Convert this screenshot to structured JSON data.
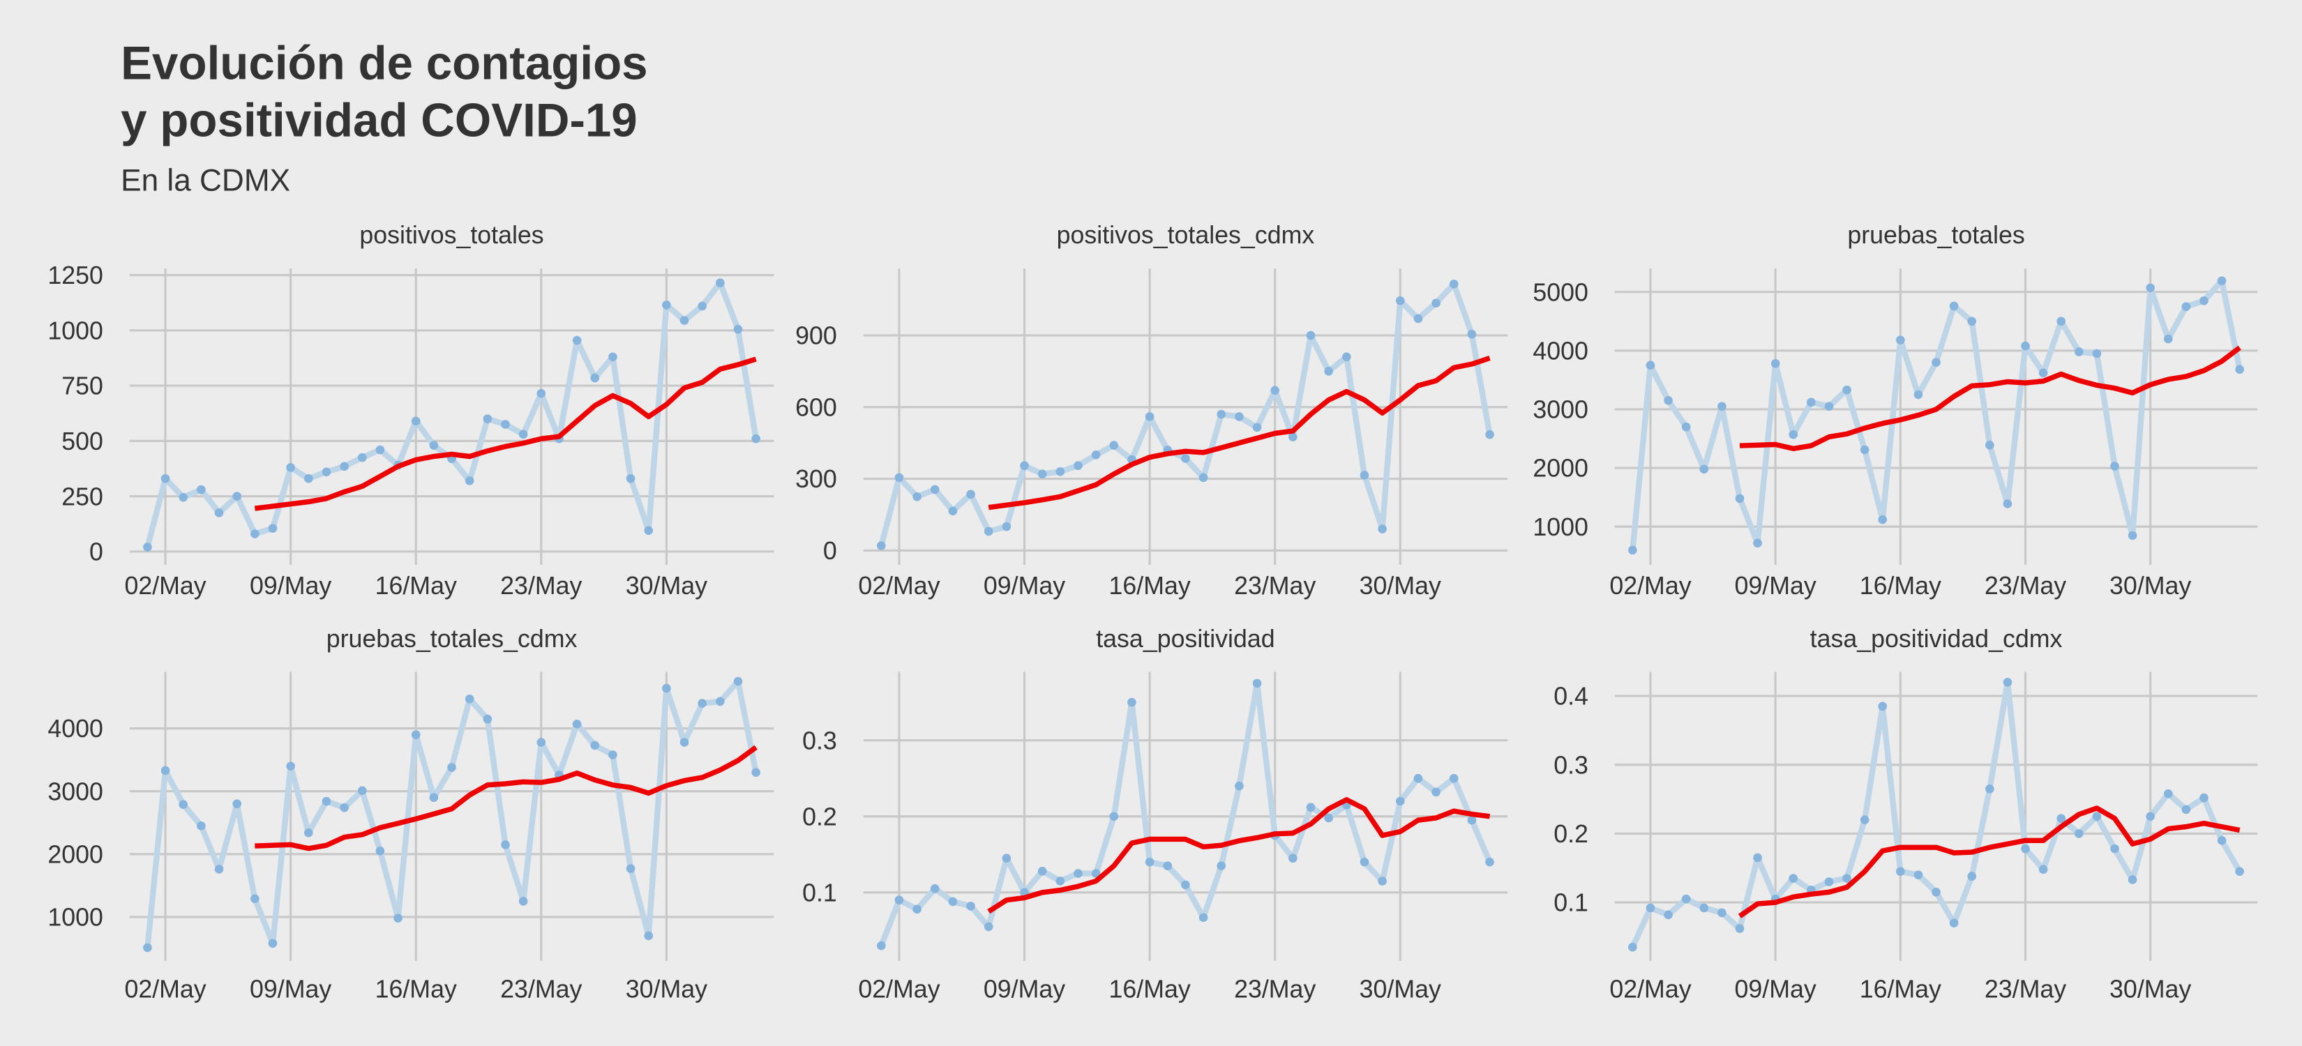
{
  "title": [
    "Evolución de contagios",
    "y positividad COVID-19"
  ],
  "subtitle": "En la CDMX",
  "x": [
    "01/May",
    "02/May",
    "03/May",
    "04/May",
    "05/May",
    "06/May",
    "07/May",
    "08/May",
    "09/May",
    "10/May",
    "11/May",
    "12/May",
    "13/May",
    "14/May",
    "15/May",
    "16/May",
    "17/May",
    "18/May",
    "19/May",
    "20/May",
    "21/May",
    "22/May",
    "23/May",
    "24/May",
    "25/May",
    "26/May",
    "27/May",
    "28/May",
    "29/May",
    "30/May",
    "31/May",
    "01/Jun",
    "02/Jun",
    "03/Jun",
    "04/Jun"
  ],
  "xticks": [
    "02/May",
    "09/May",
    "16/May",
    "23/May",
    "30/May"
  ],
  "grid": true,
  "chart_data": [
    {
      "type": "line",
      "title": "positivos_totales",
      "ylim": [
        -60,
        1280
      ],
      "yticks": [
        0,
        250,
        500,
        750,
        1000,
        1250
      ],
      "series": [
        {
          "color": "#bed5e8",
          "marker_color": "#86b4dc",
          "markers": true,
          "values": [
            20,
            330,
            245,
            280,
            175,
            250,
            80,
            105,
            380,
            330,
            360,
            385,
            425,
            460,
            390,
            590,
            480,
            420,
            320,
            600,
            575,
            530,
            715,
            510,
            955,
            785,
            880,
            330,
            95,
            1115,
            1045,
            1110,
            1215,
            1005,
            510
          ]
        },
        {
          "color": "#ee0000",
          "values": [
            null,
            null,
            null,
            null,
            null,
            null,
            195,
            205,
            215,
            225,
            240,
            270,
            295,
            340,
            385,
            415,
            430,
            440,
            430,
            455,
            475,
            490,
            510,
            520,
            590,
            660,
            705,
            670,
            610,
            665,
            740,
            765,
            825,
            845,
            870
          ]
        }
      ]
    },
    {
      "type": "line",
      "title": "positivos_totales_cdmx",
      "ylim": [
        -60,
        1180
      ],
      "yticks": [
        0,
        300,
        600,
        900
      ],
      "series": [
        {
          "color": "#bed5e8",
          "marker_color": "#86b4dc",
          "markers": true,
          "values": [
            20,
            305,
            225,
            255,
            165,
            235,
            80,
            100,
            355,
            320,
            330,
            355,
            400,
            440,
            380,
            560,
            420,
            385,
            305,
            570,
            560,
            515,
            670,
            475,
            900,
            750,
            810,
            315,
            90,
            1045,
            970,
            1035,
            1115,
            905,
            485
          ]
        },
        {
          "color": "#ee0000",
          "values": [
            null,
            null,
            null,
            null,
            null,
            null,
            180,
            190,
            200,
            212,
            225,
            250,
            275,
            320,
            360,
            390,
            405,
            415,
            410,
            430,
            450,
            470,
            490,
            500,
            570,
            630,
            665,
            630,
            575,
            630,
            690,
            710,
            765,
            780,
            805
          ]
        }
      ]
    },
    {
      "type": "line",
      "title": "pruebas_totales",
      "ylim": [
        350,
        5400
      ],
      "yticks": [
        1000,
        2000,
        3000,
        4000,
        5000
      ],
      "series": [
        {
          "color": "#bed5e8",
          "marker_color": "#86b4dc",
          "markers": true,
          "values": [
            600,
            3750,
            3150,
            2700,
            1980,
            3050,
            1480,
            720,
            3780,
            2570,
            3120,
            3050,
            3330,
            2310,
            1120,
            4180,
            3250,
            3800,
            4760,
            4500,
            2390,
            1390,
            4080,
            3620,
            4500,
            3980,
            3950,
            2030,
            850,
            5070,
            4200,
            4750,
            4850,
            5190,
            3680
          ]
        },
        {
          "color": "#ee0000",
          "values": [
            null,
            null,
            null,
            null,
            null,
            null,
            2380,
            2390,
            2400,
            2330,
            2380,
            2530,
            2580,
            2680,
            2760,
            2820,
            2900,
            3000,
            3220,
            3400,
            3420,
            3470,
            3450,
            3480,
            3600,
            3490,
            3410,
            3360,
            3280,
            3420,
            3510,
            3560,
            3660,
            3820,
            4050
          ]
        }
      ]
    },
    {
      "type": "line",
      "title": "pruebas_totales_cdmx",
      "ylim": [
        300,
        4900
      ],
      "yticks": [
        1000,
        2000,
        3000,
        4000
      ],
      "series": [
        {
          "color": "#bed5e8",
          "marker_color": "#86b4dc",
          "markers": true,
          "values": [
            510,
            3330,
            2790,
            2450,
            1760,
            2800,
            1290,
            580,
            3400,
            2340,
            2840,
            2740,
            3010,
            2050,
            980,
            3900,
            2900,
            3380,
            4470,
            4150,
            2150,
            1250,
            3780,
            3260,
            4070,
            3730,
            3580,
            1770,
            700,
            4640,
            3780,
            4400,
            4430,
            4750,
            3300
          ]
        },
        {
          "color": "#ee0000",
          "values": [
            null,
            null,
            null,
            null,
            null,
            null,
            2130,
            2140,
            2150,
            2090,
            2140,
            2270,
            2310,
            2420,
            2490,
            2560,
            2640,
            2720,
            2940,
            3100,
            3120,
            3150,
            3140,
            3190,
            3290,
            3180,
            3100,
            3060,
            2970,
            3090,
            3170,
            3220,
            3340,
            3490,
            3700
          ]
        }
      ]
    },
    {
      "type": "line",
      "title": "tasa_positividad",
      "ylim": [
        0.01,
        0.39
      ],
      "yticks": [
        0.1,
        0.2,
        0.3
      ],
      "series": [
        {
          "color": "#bed5e8",
          "marker_color": "#86b4dc",
          "markers": true,
          "values": [
            0.03,
            0.09,
            0.078,
            0.105,
            0.088,
            0.082,
            0.055,
            0.145,
            0.1,
            0.128,
            0.115,
            0.125,
            0.125,
            0.2,
            0.35,
            0.14,
            0.135,
            0.11,
            0.067,
            0.135,
            0.24,
            0.375,
            0.175,
            0.145,
            0.212,
            0.198,
            0.215,
            0.14,
            0.115,
            0.22,
            0.25,
            0.232,
            0.25,
            0.195,
            0.14
          ]
        },
        {
          "color": "#ee0000",
          "values": [
            null,
            null,
            null,
            null,
            null,
            null,
            0.075,
            0.09,
            0.093,
            0.1,
            0.103,
            0.108,
            0.115,
            0.135,
            0.165,
            0.17,
            0.17,
            0.17,
            0.16,
            0.162,
            0.168,
            0.172,
            0.177,
            0.178,
            0.19,
            0.21,
            0.222,
            0.21,
            0.175,
            0.18,
            0.195,
            0.198,
            0.207,
            0.203,
            0.2
          ]
        }
      ]
    },
    {
      "type": "line",
      "title": "tasa_positividad_cdmx",
      "ylim": [
        0.015,
        0.435
      ],
      "yticks": [
        0.1,
        0.2,
        0.3,
        0.4
      ],
      "series": [
        {
          "color": "#bed5e8",
          "marker_color": "#86b4dc",
          "markers": true,
          "values": [
            0.035,
            0.092,
            0.082,
            0.105,
            0.092,
            0.085,
            0.062,
            0.165,
            0.105,
            0.135,
            0.118,
            0.13,
            0.135,
            0.22,
            0.385,
            0.145,
            0.14,
            0.115,
            0.07,
            0.138,
            0.265,
            0.42,
            0.178,
            0.148,
            0.222,
            0.2,
            0.225,
            0.178,
            0.133,
            0.225,
            0.258,
            0.235,
            0.252,
            0.19,
            0.145
          ]
        },
        {
          "color": "#ee0000",
          "values": [
            null,
            null,
            null,
            null,
            null,
            null,
            0.08,
            0.098,
            0.1,
            0.108,
            0.112,
            0.115,
            0.122,
            0.145,
            0.175,
            0.18,
            0.18,
            0.18,
            0.172,
            0.173,
            0.18,
            0.185,
            0.19,
            0.19,
            0.21,
            0.228,
            0.237,
            0.222,
            0.185,
            0.192,
            0.207,
            0.21,
            0.215,
            0.21,
            0.205
          ]
        }
      ]
    }
  ]
}
